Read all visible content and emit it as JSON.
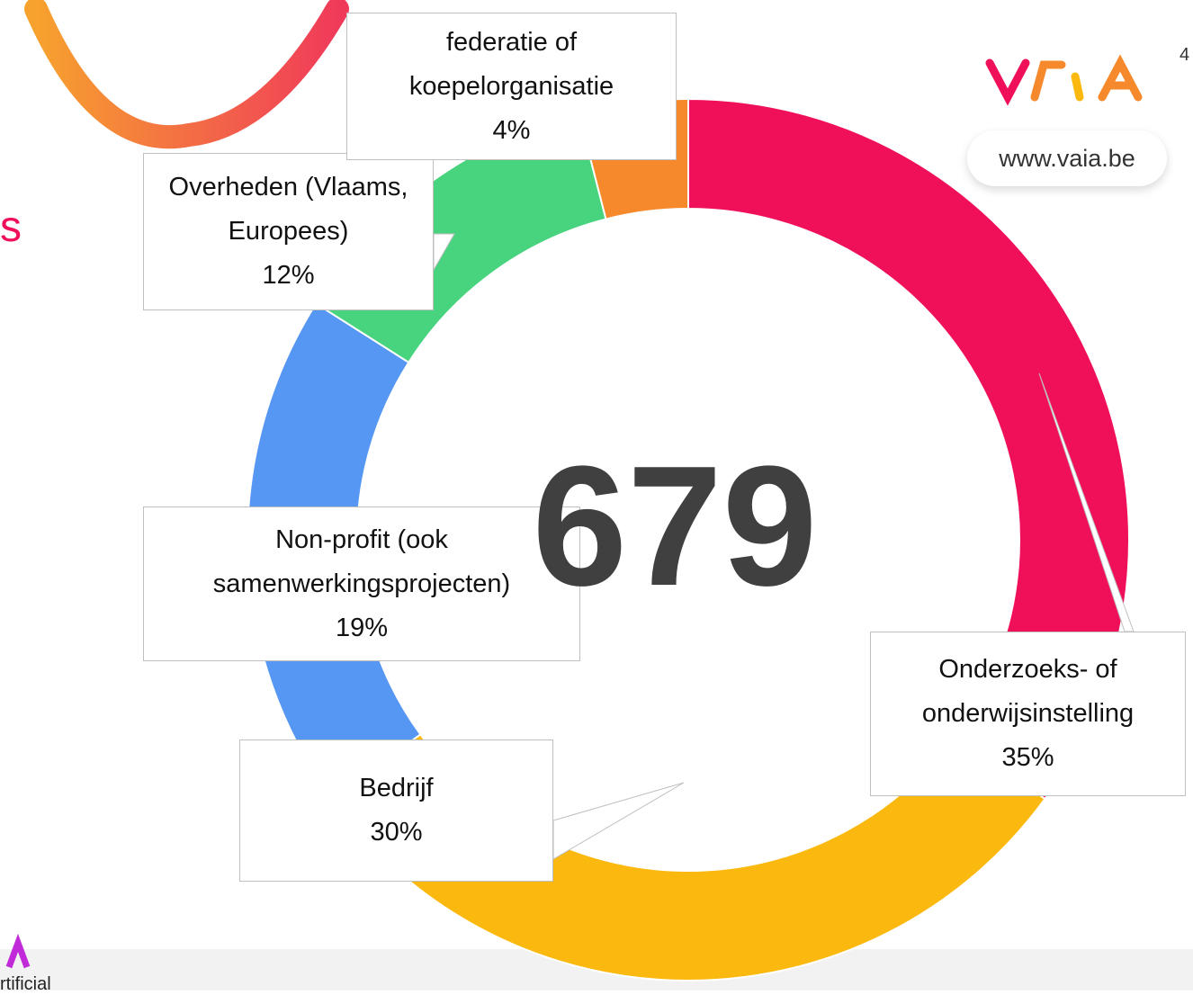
{
  "chart_data": {
    "type": "donut",
    "categories": [
      "Onderzoeks- of onderwijsinstelling",
      "Bedrijf",
      "Non-profit (ook samenwerkingsprojecten)",
      "Overheden (Vlaams, Europees)",
      "federatie of koepelorganisatie"
    ],
    "values": [
      35,
      30,
      19,
      12,
      4
    ],
    "value_labels": [
      "35%",
      "30%",
      "19%",
      "12%",
      "4%"
    ],
    "colors": [
      "#f0105a",
      "#fbb90f",
      "#5597f3",
      "#48d47e",
      "#f6892b"
    ],
    "center_label": "679"
  },
  "page_number": "4",
  "website": "www.vaia.be",
  "side_texts": [
    "s",
    "rtificial"
  ]
}
